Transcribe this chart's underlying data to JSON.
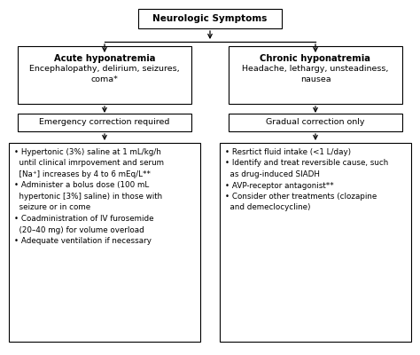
{
  "bg_color": "#ffffff",
  "box_color": "#ffffff",
  "box_edge_color": "#000000",
  "text_color": "#000000",
  "arrow_color": "#000000",
  "title_text": "Neurologic Symptoms",
  "left_box1_title": "Acute hyponatremia",
  "left_box1_body": "Encephalopathy, delirium, seizures,\ncoma*",
  "right_box1_title": "Chronic hyponatremia",
  "right_box1_body": "Headache, lethargy, unsteadiness,\nnausea",
  "left_box2_text": "Emergency correction required",
  "right_box2_text": "Gradual correction only",
  "left_box3_text": "• Hypertonic (3%) saline at 1 mL/kg/h\n  until clinical imrpovement and serum\n  [Na⁺] increases by 4 to 6 mEq/L**\n• Administer a bolus dose (100 mL\n  hypertonic [3%] saline) in those with\n  seizure or in come\n• Coadministration of IV furosemide\n  (20–40 mg) for volume overload\n• Adequate ventilation if necessary",
  "right_box3_text": "• Resrtict fluid intake (<1 L/day)\n• Identify and treat reversible cause, such\n  as drug-induced SIADH\n• AVP-receptor antagonist**\n• Consider other treatments (clozapine\n  and demeclocycline)",
  "fig_width": 4.74,
  "fig_height": 4.0,
  "dpi": 100
}
